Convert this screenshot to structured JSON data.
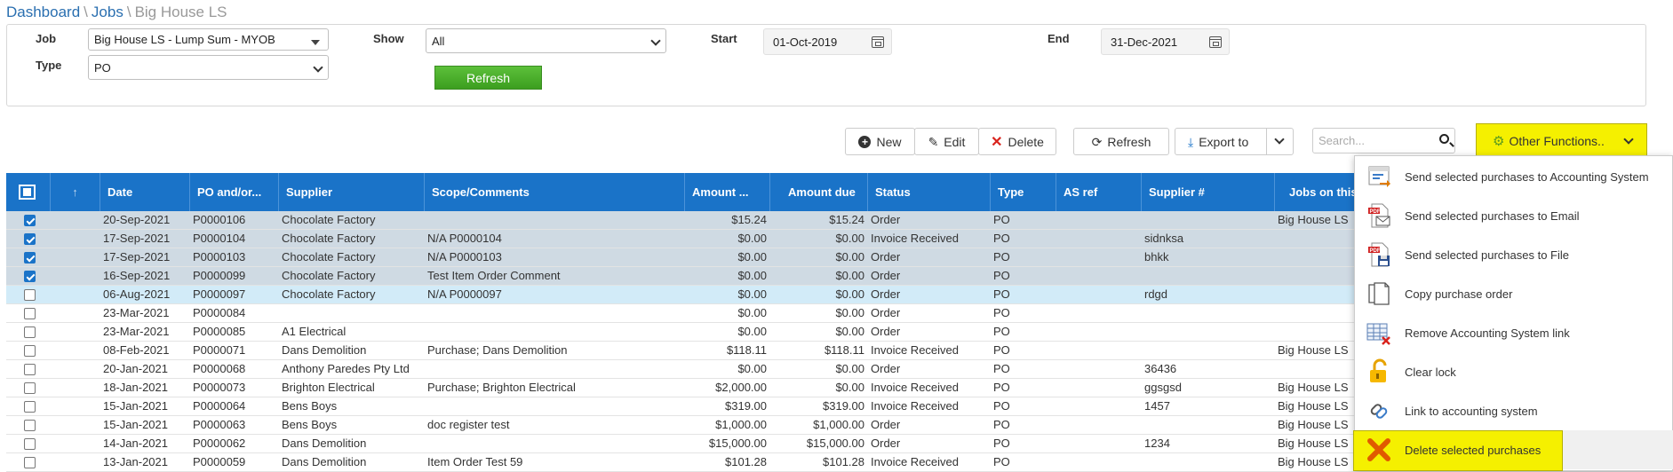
{
  "breadcrumb": {
    "dashboard": "Dashboard",
    "jobs": "Jobs",
    "current": "Big House LS",
    "sep": "\\"
  },
  "filters": {
    "job_label": "Job",
    "job_value": "Big House LS - Lump Sum - MYOB",
    "type_label": "Type",
    "type_value": "PO",
    "show_label": "Show",
    "show_value": "All",
    "start_label": "Start",
    "start_value": "01-Oct-2019",
    "end_label": "End",
    "end_value": "31-Dec-2021",
    "refresh_label": "Refresh"
  },
  "toolbar": {
    "new_label": "New",
    "edit_label": "Edit",
    "delete_label": "Delete",
    "refresh_label": "Refresh",
    "export_label": "Export to",
    "search_placeholder": "Search...",
    "other_label": "Other Functions.."
  },
  "table": {
    "headers": [
      "Date",
      "PO and/or...",
      "Supplier",
      "Scope/Comments",
      "Amount ...",
      "Amount due",
      "Status",
      "Type",
      "AS ref",
      "Supplier #",
      "Jobs on this"
    ],
    "sort_icon": "↑",
    "rows": [
      {
        "checked": true,
        "state": "sel",
        "date": "20-Sep-2021",
        "po": "P0000106",
        "supplier": "Chocolate Factory",
        "scope": "",
        "amount": "$15.24",
        "due": "$15.24",
        "status": "Order",
        "type": "PO",
        "asref": "",
        "supnum": "",
        "jobs": "Big House LS"
      },
      {
        "checked": true,
        "state": "sel",
        "date": "17-Sep-2021",
        "po": "P0000104",
        "supplier": "Chocolate Factory",
        "scope": "N/A P0000104",
        "amount": "$0.00",
        "due": "$0.00",
        "status": "Invoice Received",
        "type": "PO",
        "asref": "",
        "supnum": "sidnksa",
        "jobs": ""
      },
      {
        "checked": true,
        "state": "sel",
        "date": "17-Sep-2021",
        "po": "P0000103",
        "supplier": "Chocolate Factory",
        "scope": "N/A P0000103",
        "amount": "$0.00",
        "due": "$0.00",
        "status": "Order",
        "type": "PO",
        "asref": "",
        "supnum": "bhkk",
        "jobs": ""
      },
      {
        "checked": true,
        "state": "sel",
        "date": "16-Sep-2021",
        "po": "P0000099",
        "supplier": "Chocolate Factory",
        "scope": "Test Item Order Comment",
        "amount": "$0.00",
        "due": "$0.00",
        "status": "Order",
        "type": "PO",
        "asref": "",
        "supnum": "",
        "jobs": ""
      },
      {
        "checked": false,
        "state": "hl",
        "date": "06-Aug-2021",
        "po": "P0000097",
        "supplier": "Chocolate Factory",
        "scope": "N/A P0000097",
        "amount": "$0.00",
        "due": "$0.00",
        "status": "Order",
        "type": "PO",
        "asref": "",
        "supnum": "rdgd",
        "jobs": ""
      },
      {
        "checked": false,
        "state": "",
        "date": "23-Mar-2021",
        "po": "P0000084",
        "supplier": "",
        "scope": "",
        "amount": "$0.00",
        "due": "$0.00",
        "status": "Order",
        "type": "PO",
        "asref": "",
        "supnum": "",
        "jobs": ""
      },
      {
        "checked": false,
        "state": "",
        "date": "23-Mar-2021",
        "po": "P0000085",
        "supplier": "A1 Electrical",
        "scope": "",
        "amount": "$0.00",
        "due": "$0.00",
        "status": "Order",
        "type": "PO",
        "asref": "",
        "supnum": "",
        "jobs": ""
      },
      {
        "checked": false,
        "state": "",
        "date": "08-Feb-2021",
        "po": "P0000071",
        "supplier": "Dans Demolition",
        "scope": "Purchase; Dans Demolition",
        "amount": "$118.11",
        "due": "$118.11",
        "status": "Invoice Received",
        "type": "PO",
        "asref": "",
        "supnum": "",
        "jobs": "Big House LS"
      },
      {
        "checked": false,
        "state": "",
        "date": "20-Jan-2021",
        "po": "P0000068",
        "supplier": "Anthony Paredes Pty Ltd",
        "scope": "",
        "amount": "$0.00",
        "due": "$0.00",
        "status": "Order",
        "type": "PO",
        "asref": "",
        "supnum": "36436",
        "jobs": ""
      },
      {
        "checked": false,
        "state": "",
        "date": "18-Jan-2021",
        "po": "P0000073",
        "supplier": "Brighton Electrical",
        "scope": "Purchase; Brighton Electrical",
        "amount": "$2,000.00",
        "due": "$0.00",
        "status": "Invoice Received",
        "type": "PO",
        "asref": "",
        "supnum": "ggsgsd",
        "jobs": "Big House LS"
      },
      {
        "checked": false,
        "state": "",
        "date": "15-Jan-2021",
        "po": "P0000064",
        "supplier": "Bens Boys",
        "scope": "",
        "amount": "$319.00",
        "due": "$319.00",
        "status": "Invoice Received",
        "type": "PO",
        "asref": "",
        "supnum": "1457",
        "jobs": "Big House LS"
      },
      {
        "checked": false,
        "state": "",
        "date": "15-Jan-2021",
        "po": "P0000063",
        "supplier": "Bens Boys",
        "scope": "doc register test",
        "amount": "$1,000.00",
        "due": "$1,000.00",
        "status": "Order",
        "type": "PO",
        "asref": "",
        "supnum": "",
        "jobs": "Big House LS"
      },
      {
        "checked": false,
        "state": "",
        "date": "14-Jan-2021",
        "po": "P0000062",
        "supplier": "Dans Demolition",
        "scope": "",
        "amount": "$15,000.00",
        "due": "$15,000.00",
        "status": "Order",
        "type": "PO",
        "asref": "",
        "supnum": "1234",
        "jobs": "Big House LS"
      },
      {
        "checked": false,
        "state": "",
        "date": "13-Jan-2021",
        "po": "P0000059",
        "supplier": "Dans Demolition",
        "scope": "Item Order Test 59",
        "amount": "$101.28",
        "due": "$101.28",
        "status": "Invoice Received",
        "type": "PO",
        "asref": "",
        "supnum": "",
        "jobs": "Big House LS"
      }
    ]
  },
  "menu": {
    "items": [
      {
        "label": "Send selected purchases to Accounting System",
        "icon": "accounting-export-icon"
      },
      {
        "label": "Send selected purchases to Email",
        "icon": "pdf-email-icon"
      },
      {
        "label": "Send selected purchases to File",
        "icon": "pdf-file-icon"
      },
      {
        "label": "Copy purchase order",
        "icon": "copy-document-icon"
      },
      {
        "label": "Remove Accounting System link",
        "icon": "remove-link-table-icon"
      },
      {
        "label": "Clear lock",
        "icon": "unlock-icon"
      },
      {
        "label": "Link to accounting system",
        "icon": "link-icon"
      },
      {
        "label": "Delete selected purchases",
        "icon": "delete-x-icon"
      }
    ]
  },
  "colors": {
    "header_blue": "#1a73c8",
    "highlight_yellow": "#f5f000",
    "refresh_green": "#4caf2a",
    "delete_red": "#d9231d"
  }
}
